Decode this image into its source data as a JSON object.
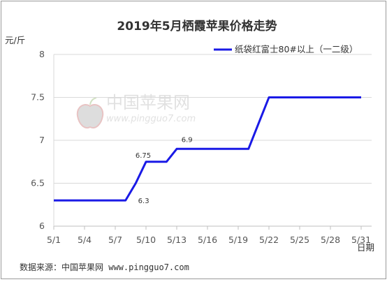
{
  "chart_data": {
    "type": "line",
    "title": "2019年5月栖霞苹果价格走势",
    "ylabel": "元/斤",
    "xlabel": "日期",
    "ylim": [
      6,
      8
    ],
    "yticks": [
      "6",
      "6.5",
      "7",
      "7.5",
      "8"
    ],
    "xticks": [
      "5/1",
      "5/4",
      "5/7",
      "5/10",
      "5/13",
      "5/16",
      "5/19",
      "5/22",
      "5/25",
      "5/28",
      "5/31"
    ],
    "grid": true,
    "legend_position": "top-right",
    "series": [
      {
        "name": "纸袋红富士80#以上（一二级）",
        "color": "#1a1ae6",
        "x": [
          1,
          2,
          3,
          4,
          5,
          6,
          7,
          8,
          9,
          10,
          11,
          12,
          13,
          14,
          15,
          16,
          17,
          18,
          19,
          20,
          21,
          22,
          23,
          24,
          25,
          26,
          27,
          28,
          29,
          30,
          31
        ],
        "values": [
          6.3,
          6.3,
          6.3,
          6.3,
          6.3,
          6.3,
          6.3,
          6.3,
          6.5,
          6.75,
          6.75,
          6.75,
          6.9,
          6.9,
          6.9,
          6.9,
          6.9,
          6.9,
          6.9,
          6.9,
          7.2,
          7.5,
          7.5,
          7.5,
          7.5,
          7.5,
          7.5,
          7.5,
          7.5,
          7.5,
          7.5
        ]
      }
    ],
    "annotations": [
      {
        "x": 8,
        "y": 6.3,
        "text": "6.3"
      },
      {
        "x": 10,
        "y": 6.75,
        "text": "6.75"
      },
      {
        "x": 14,
        "y": 6.9,
        "text": "6.9"
      }
    ]
  },
  "source": "数据来源：中国苹果网 www.pingguo7.com",
  "watermark": {
    "name": "中国苹果网",
    "url": "www.pingguo7.com"
  }
}
